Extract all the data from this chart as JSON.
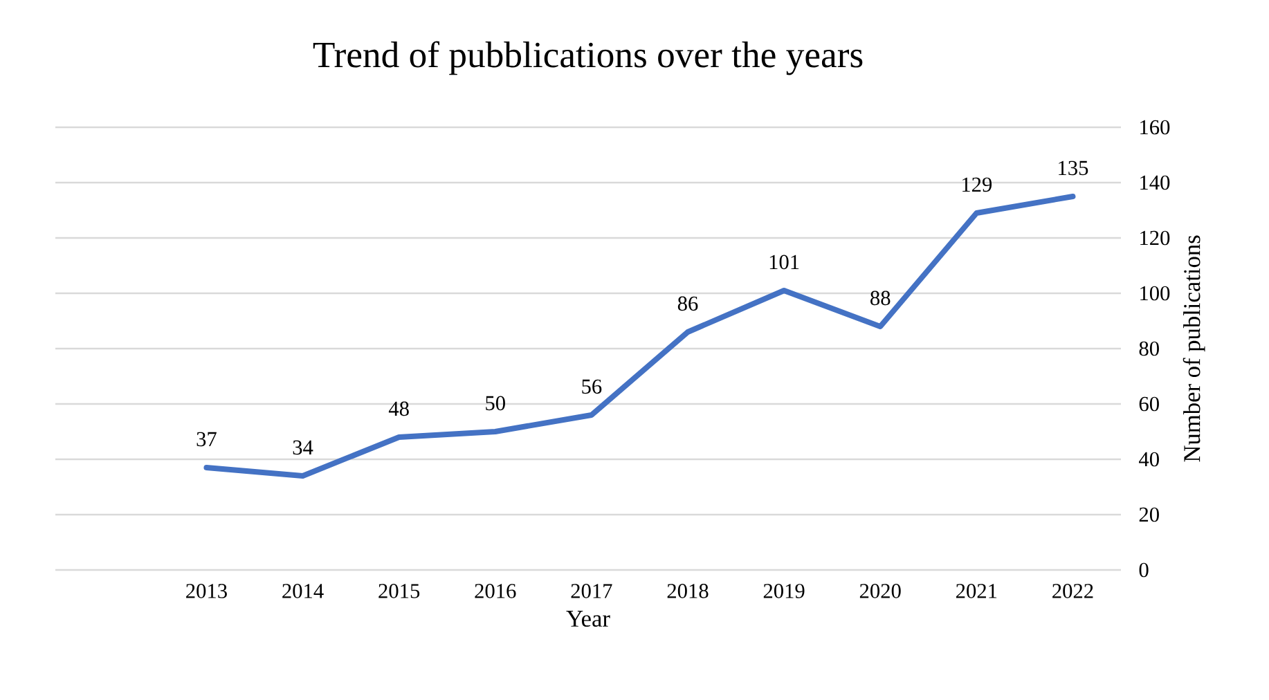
{
  "chart_data": {
    "type": "line",
    "title": "Trend of pubblications over the years",
    "xlabel": "Year",
    "ylabel": "Number of publications",
    "categories": [
      "2013",
      "2014",
      "2015",
      "2016",
      "2017",
      "2018",
      "2019",
      "2020",
      "2021",
      "2022"
    ],
    "series": [
      {
        "color": "#4472c4",
        "values": [
          37,
          34,
          48,
          50,
          56,
          86,
          101,
          88,
          129,
          135
        ]
      }
    ],
    "ylim": [
      0,
      160
    ],
    "yticks": [
      0,
      20,
      40,
      60,
      80,
      100,
      120,
      140,
      160
    ],
    "grid": "y",
    "data_labels": true,
    "marker": "none",
    "line_style": "solid"
  }
}
